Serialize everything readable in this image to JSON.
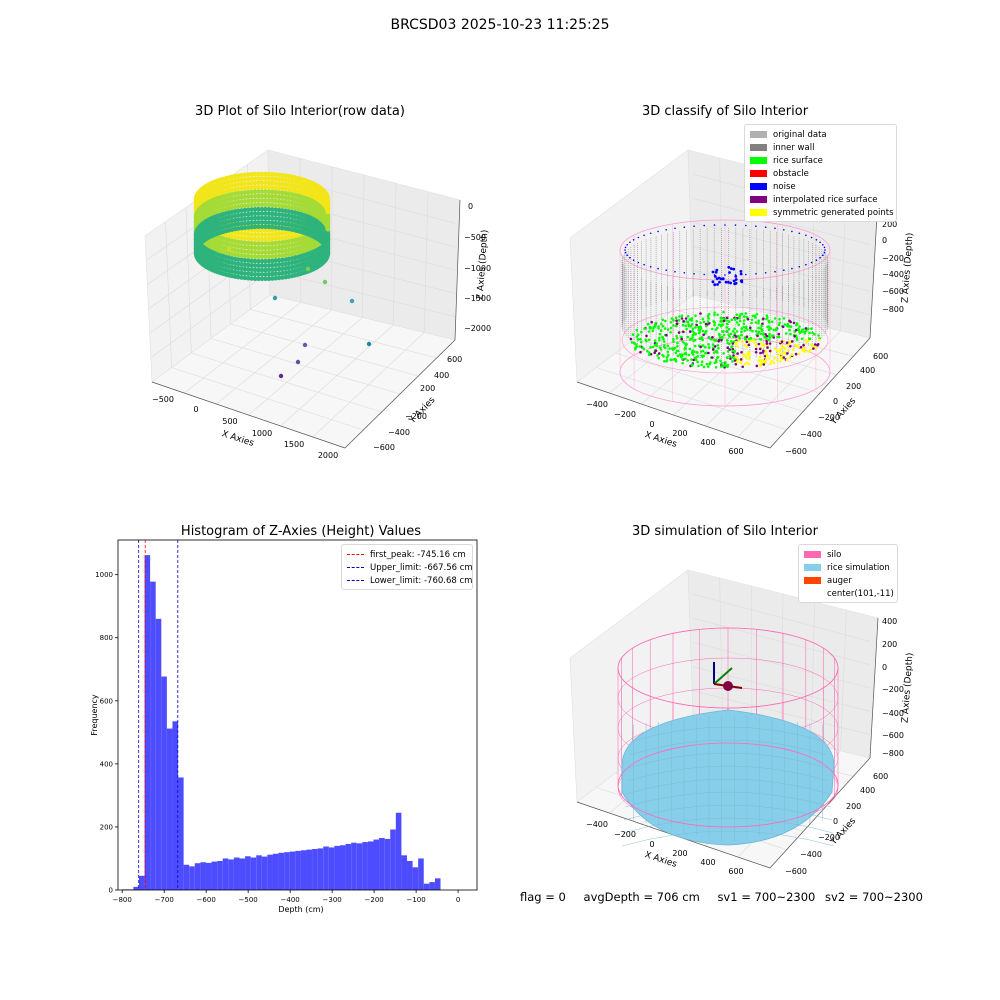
{
  "suptitle": "BRCSD03 2025-10-23 11:25:25",
  "footer": {
    "flag": "flag = 0",
    "avg_depth": "avgDepth = 706 cm",
    "sv1": "sv1 = 700~2300",
    "sv2": "sv2 = 700~2300"
  },
  "colors": {
    "hist_bar": "#4d4dff",
    "first_peak": "#ff0000",
    "limit": "#0000cc",
    "silo": "#ff69b4",
    "rice_sim": "#87ceeb",
    "auger": "#ff4500",
    "original": "#b0b0b0",
    "inner_wall": "#808080",
    "rice_surface": "#00ff00",
    "obstacle": "#ff0000",
    "noise": "#0000ff",
    "interp_rice": "#800080",
    "symmetric": "#ffff00"
  },
  "plot1": {
    "title": "3D Plot of Silo Interior(row data)",
    "xlabel": "X Axies",
    "ylabel": "Y Axies",
    "zlabel": "Z Axies (Depth)",
    "xticks": [
      "−500",
      "0",
      "500",
      "1000",
      "1500",
      "2000"
    ],
    "yticks": [
      "600",
      "400",
      "200",
      "−200",
      "−400",
      "−600"
    ],
    "zticks": [
      "0",
      "−500",
      "−1000",
      "−1500",
      "−2000"
    ]
  },
  "plot2": {
    "title": "3D classify of Silo Interior",
    "xlabel": "X Axies",
    "ylabel": "Y Axies",
    "zlabel": "Z Axies (Depth)",
    "xticks": [
      "−400",
      "−200",
      "0",
      "200",
      "400",
      "600"
    ],
    "yticks": [
      "600",
      "400",
      "200",
      "0",
      "−200",
      "−400",
      "−600"
    ],
    "zticks": [
      "200",
      "0",
      "−200",
      "−400",
      "−600",
      "−800"
    ],
    "legend": [
      {
        "label": "original data",
        "color": "#b0b0b0"
      },
      {
        "label": "inner wall",
        "color": "#808080"
      },
      {
        "label": "rice surface",
        "color": "#00ff00"
      },
      {
        "label": "obstacle",
        "color": "#ff0000"
      },
      {
        "label": "noise",
        "color": "#0000ff"
      },
      {
        "label": "interpolated rice surface",
        "color": "#800080"
      },
      {
        "label": "symmetric generated points",
        "color": "#ffff00"
      }
    ]
  },
  "plot4": {
    "title": "3D simulation of Silo Interior",
    "xlabel": "X Axies",
    "ylabel": "Y Axies",
    "zlabel": "Z Axies (Depth)",
    "xticks": [
      "−400",
      "−200",
      "0",
      "200",
      "400",
      "600"
    ],
    "yticks": [
      "600",
      "400",
      "200",
      "0",
      "−200",
      "−400",
      "−600"
    ],
    "zticks": [
      "400",
      "200",
      "0",
      "−200",
      "−400",
      "−600",
      "−800"
    ],
    "legend": [
      {
        "label": "silo",
        "color": "#ff69b4"
      },
      {
        "label": "rice simulation",
        "color": "#87ceeb"
      },
      {
        "label": "auger",
        "color": "#ff4500"
      },
      {
        "label": "center(101,-11)",
        "color": ""
      }
    ]
  },
  "chart_data": [
    {
      "type": "bar",
      "title": "Histogram of Z-Axies (Height) Values",
      "xlabel": "Depth (cm)",
      "ylabel": "Frequency",
      "xlim": [
        -810,
        45
      ],
      "ylim": [
        0,
        1110
      ],
      "bin_width": 13.3,
      "xticks": [
        -800,
        -700,
        -600,
        -500,
        -400,
        -300,
        -200,
        -100,
        0
      ],
      "yticks": [
        0,
        200,
        400,
        600,
        800,
        1000
      ],
      "bins": [
        {
          "x0": -800,
          "v": 2
        },
        {
          "x0": -786.7,
          "v": 2
        },
        {
          "x0": -773.4,
          "v": 10
        },
        {
          "x0": -760.1,
          "v": 45
        },
        {
          "x0": -746.8,
          "v": 1062
        },
        {
          "x0": -733.5,
          "v": 978
        },
        {
          "x0": -720.2,
          "v": 860
        },
        {
          "x0": -706.9,
          "v": 677
        },
        {
          "x0": -693.6,
          "v": 512
        },
        {
          "x0": -680.3,
          "v": 535
        },
        {
          "x0": -667.0,
          "v": 357
        },
        {
          "x0": -653.7,
          "v": 80
        },
        {
          "x0": -640.4,
          "v": 75
        },
        {
          "x0": -627.1,
          "v": 85
        },
        {
          "x0": -613.8,
          "v": 88
        },
        {
          "x0": -600.5,
          "v": 86
        },
        {
          "x0": -587.2,
          "v": 90
        },
        {
          "x0": -573.9,
          "v": 92
        },
        {
          "x0": -560.6,
          "v": 100
        },
        {
          "x0": -547.3,
          "v": 97
        },
        {
          "x0": -534.0,
          "v": 103
        },
        {
          "x0": -520.7,
          "v": 100
        },
        {
          "x0": -507.4,
          "v": 107
        },
        {
          "x0": -494.1,
          "v": 103
        },
        {
          "x0": -480.8,
          "v": 110
        },
        {
          "x0": -467.5,
          "v": 106
        },
        {
          "x0": -454.2,
          "v": 112
        },
        {
          "x0": -440.9,
          "v": 115
        },
        {
          "x0": -427.6,
          "v": 118
        },
        {
          "x0": -414.3,
          "v": 120
        },
        {
          "x0": -401.0,
          "v": 122
        },
        {
          "x0": -387.7,
          "v": 124
        },
        {
          "x0": -374.4,
          "v": 126
        },
        {
          "x0": -361.1,
          "v": 128
        },
        {
          "x0": -347.8,
          "v": 130
        },
        {
          "x0": -334.5,
          "v": 132
        },
        {
          "x0": -321.2,
          "v": 138
        },
        {
          "x0": -307.9,
          "v": 135
        },
        {
          "x0": -294.6,
          "v": 140
        },
        {
          "x0": -281.3,
          "v": 142
        },
        {
          "x0": -268.0,
          "v": 146
        },
        {
          "x0": -254.7,
          "v": 150
        },
        {
          "x0": -241.4,
          "v": 148
        },
        {
          "x0": -228.1,
          "v": 152
        },
        {
          "x0": -214.8,
          "v": 154
        },
        {
          "x0": -201.5,
          "v": 160
        },
        {
          "x0": -188.2,
          "v": 165
        },
        {
          "x0": -174.9,
          "v": 162
        },
        {
          "x0": -161.6,
          "v": 192
        },
        {
          "x0": -148.3,
          "v": 245
        },
        {
          "x0": -135.0,
          "v": 110
        },
        {
          "x0": -121.7,
          "v": 92
        },
        {
          "x0": -108.4,
          "v": 72
        },
        {
          "x0": -95.1,
          "v": 100
        },
        {
          "x0": -81.8,
          "v": 20
        },
        {
          "x0": -68.5,
          "v": 25
        },
        {
          "x0": -55.2,
          "v": 37
        }
      ],
      "vlines": [
        {
          "label": "first_peak: -745.16 cm",
          "x": -745.16,
          "color": "#ff0000"
        },
        {
          "label": "Upper_limit: -667.56 cm",
          "x": -667.56,
          "color": "#0000cc"
        },
        {
          "label": "Lower_limit: -760.68 cm",
          "x": -760.68,
          "color": "#0000cc"
        }
      ],
      "legend_position": "top-right",
      "grid": false
    }
  ]
}
